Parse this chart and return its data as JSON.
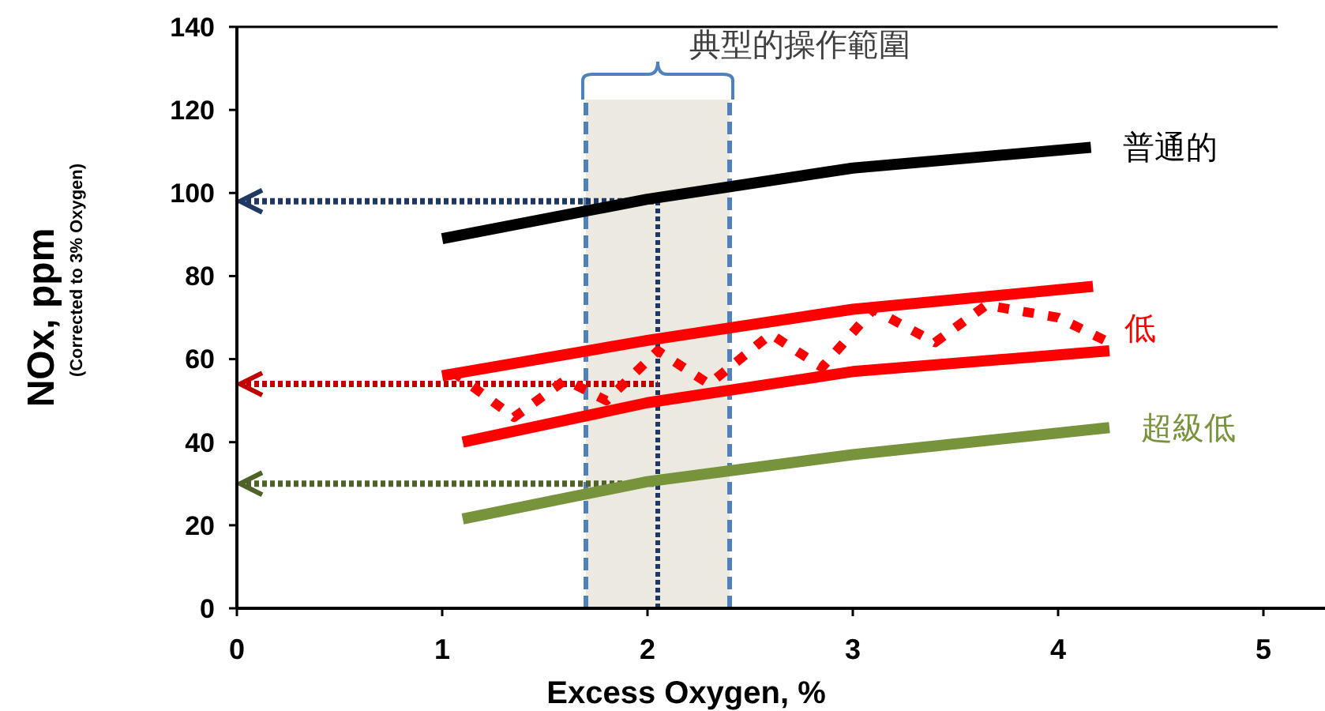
{
  "chart_data": {
    "type": "line",
    "xlabel": "Excess Oxygen, %",
    "ylabel": "NOx, ppm\n(Corrected to 3% Oxygen)",
    "xlim": [
      0,
      5.3
    ],
    "xticks": [
      0,
      1,
      2,
      3,
      4,
      5
    ],
    "ylim": [
      0,
      140
    ],
    "yticks": [
      0,
      20,
      40,
      60,
      80,
      100,
      120,
      140
    ],
    "grid": false,
    "legend": false,
    "marker": "none",
    "series": [
      {
        "name": "普通的",
        "color": "#000000",
        "x": [
          1.0,
          2.0,
          3.0,
          4.16
        ],
        "values": [
          89,
          98.5,
          106,
          111
        ]
      },
      {
        "name": "低",
        "color": "#ff0000",
        "x": [
          1.0,
          2.0,
          3.0,
          4.17
        ],
        "values": [
          56,
          64.5,
          72,
          77.5
        ]
      },
      {
        "color": "#ff0000",
        "x": [
          1.1,
          2.0,
          3.0,
          4.25
        ],
        "values": [
          40,
          49.5,
          57,
          62
        ]
      },
      {
        "color": "#ff0000",
        "line_style": "dotted",
        "x": [
          1.05,
          1.35,
          1.6,
          1.8,
          2.05,
          2.3,
          2.6,
          2.85,
          3.1,
          3.4,
          3.65,
          4.0,
          4.25
        ],
        "values": [
          57,
          46,
          55,
          50,
          62,
          54,
          66,
          58,
          72,
          64,
          73,
          70,
          64
        ]
      },
      {
        "name": "超級低",
        "color": "#77933c",
        "x": [
          1.1,
          2.0,
          3.0,
          4.25
        ],
        "values": [
          21.5,
          30.5,
          37,
          43.5
        ]
      }
    ],
    "bands": [
      {
        "axis": "x",
        "from": 1.7,
        "to": 2.4,
        "label": "典型的操作範圍",
        "color": "#ebe9e0"
      }
    ],
    "ref_lines": [
      {
        "axis": "x",
        "value": 2.05,
        "color": "#1f3864",
        "line_style": "dotted"
      },
      {
        "axis": "x",
        "value": 1.7,
        "color": "#4f81bd",
        "line_style": "dashed"
      },
      {
        "axis": "x",
        "value": 2.4,
        "color": "#4f81bd",
        "line_style": "dashed"
      },
      {
        "axis": "y",
        "value": 98,
        "color": "#1f3864",
        "line_style": "dotted"
      },
      {
        "axis": "y",
        "value": 54,
        "color": "#c00000",
        "line_style": "dotted"
      },
      {
        "axis": "y",
        "value": 30,
        "color": "#4f6228",
        "line_style": "dotted"
      }
    ]
  }
}
